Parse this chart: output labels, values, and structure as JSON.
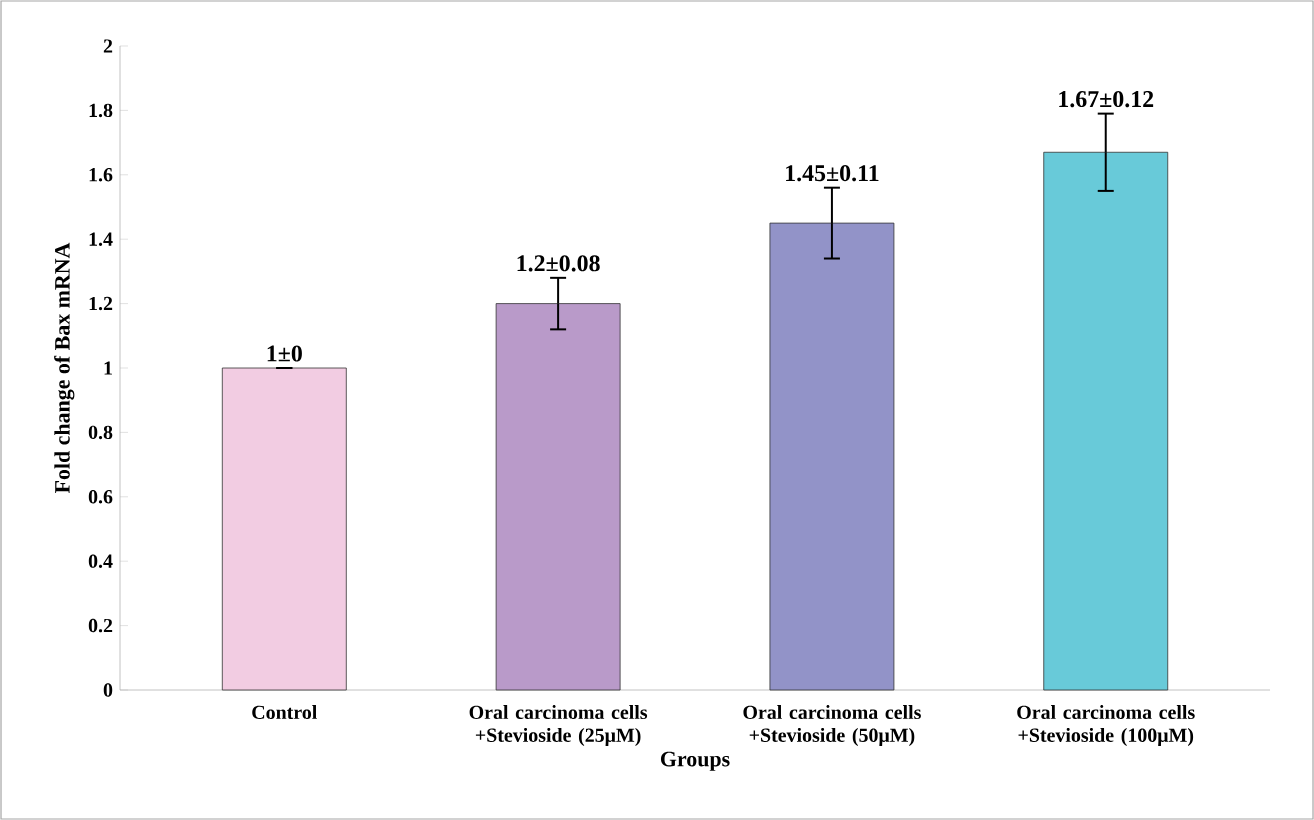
{
  "chart_data": {
    "type": "bar",
    "xlabel": "Groups",
    "ylabel": "Fold change of  Bax mRNA",
    "categories": [
      "Control",
      "Oral carcinoma cells +Stevioside (25μM)",
      "Oral carcinoma cells +Stevioside  (50μM)",
      "Oral carcinoma cells +Stevioside (100μM)"
    ],
    "values": [
      1,
      1.2,
      1.45,
      1.67
    ],
    "errors": [
      0,
      0.08,
      0.11,
      0.12
    ],
    "value_labels": [
      "1±0",
      "1.2±0.08",
      "1.45±0.11",
      "1.67±0.12"
    ],
    "colors": [
      "#f2cce2",
      "#b99ac9",
      "#9293c8",
      "#68cad9"
    ],
    "ylim": [
      0,
      2
    ],
    "yticks": [
      0,
      0.2,
      0.4,
      0.6,
      0.8,
      1,
      1.2,
      1.4,
      1.6,
      1.8,
      2
    ],
    "grid": false
  }
}
